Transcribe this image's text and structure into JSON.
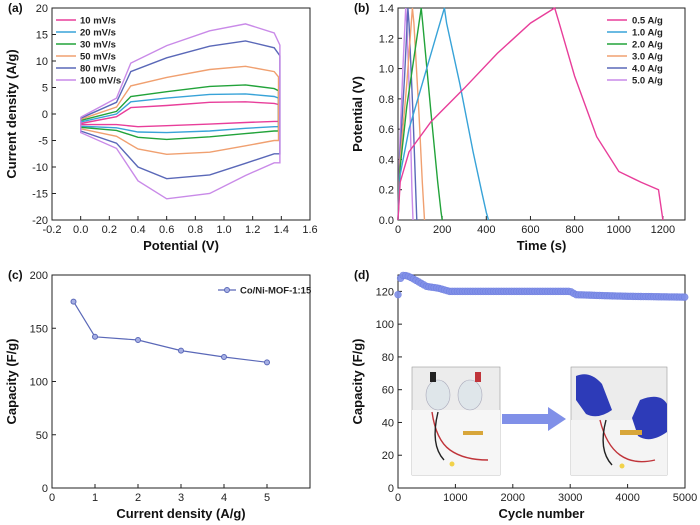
{
  "colors": {
    "s10": "#e83e9a",
    "s20": "#38a3d8",
    "s30": "#22a33a",
    "s50": "#f0a070",
    "s80": "#5a68b8",
    "s100": "#c98ae8",
    "bright": "#8090e8"
  },
  "chart_data": [
    {
      "panel_label": "(a)",
      "type": "line",
      "xlabel": "Potential (V)",
      "ylabel": "Current density (A/g)",
      "xlim": [
        -0.2,
        1.6
      ],
      "ylim": [
        -20,
        20
      ],
      "xticks": [
        "-0.2",
        "0.0",
        "0.2",
        "0.4",
        "0.6",
        "0.8",
        "1.0",
        "1.2",
        "1.4",
        "1.6"
      ],
      "yticks": [
        "-20",
        "-15",
        "-10",
        "-5",
        "0",
        "5",
        "10",
        "15",
        "20"
      ],
      "legend_position": "top-left",
      "series": [
        {
          "name": "10 mV/s",
          "color_key": "s10",
          "upper": [
            [
              0,
              -1.8
            ],
            [
              0.25,
              -0.5
            ],
            [
              0.35,
              1.2
            ],
            [
              0.6,
              1.6
            ],
            [
              0.9,
              2.2
            ],
            [
              1.15,
              2.3
            ],
            [
              1.35,
              2.0
            ],
            [
              1.38,
              1.8
            ]
          ],
          "lower": [
            [
              0,
              -2.0
            ],
            [
              0.25,
              -2.0
            ],
            [
              0.4,
              -2.4
            ],
            [
              0.6,
              -2.2
            ],
            [
              0.9,
              -1.9
            ],
            [
              1.15,
              -1.6
            ],
            [
              1.35,
              -1.4
            ],
            [
              1.38,
              -1.4
            ]
          ]
        },
        {
          "name": "20 mV/s",
          "color_key": "s20",
          "upper": [
            [
              0,
              -1.5
            ],
            [
              0.25,
              0.0
            ],
            [
              0.35,
              2.3
            ],
            [
              0.6,
              3.0
            ],
            [
              0.9,
              3.7
            ],
            [
              1.15,
              3.8
            ],
            [
              1.35,
              3.3
            ],
            [
              1.38,
              3.0
            ]
          ],
          "lower": [
            [
              0,
              -2.3
            ],
            [
              0.25,
              -2.6
            ],
            [
              0.4,
              -3.4
            ],
            [
              0.6,
              -3.5
            ],
            [
              0.9,
              -3.2
            ],
            [
              1.15,
              -2.7
            ],
            [
              1.35,
              -2.4
            ],
            [
              1.38,
              -2.4
            ]
          ]
        },
        {
          "name": "30 mV/s",
          "color_key": "s30",
          "upper": [
            [
              0,
              -1.2
            ],
            [
              0.25,
              0.5
            ],
            [
              0.35,
              3.3
            ],
            [
              0.6,
              4.2
            ],
            [
              0.9,
              5.2
            ],
            [
              1.15,
              5.5
            ],
            [
              1.35,
              4.8
            ],
            [
              1.38,
              4.4
            ]
          ],
          "lower": [
            [
              0,
              -2.5
            ],
            [
              0.25,
              -3.1
            ],
            [
              0.4,
              -4.4
            ],
            [
              0.6,
              -4.8
            ],
            [
              0.9,
              -4.3
            ],
            [
              1.15,
              -3.7
            ],
            [
              1.35,
              -3.2
            ],
            [
              1.38,
              -3.2
            ]
          ]
        },
        {
          "name": "50 mV/s",
          "color_key": "s50",
          "upper": [
            [
              0,
              -1.0
            ],
            [
              0.25,
              1.3
            ],
            [
              0.35,
              5.3
            ],
            [
              0.6,
              6.9
            ],
            [
              0.9,
              8.4
            ],
            [
              1.15,
              9.0
            ],
            [
              1.35,
              8.0
            ],
            [
              1.38,
              7.0
            ]
          ],
          "lower": [
            [
              0,
              -2.8
            ],
            [
              0.25,
              -4.2
            ],
            [
              0.4,
              -6.6
            ],
            [
              0.6,
              -7.6
            ],
            [
              0.9,
              -7.2
            ],
            [
              1.15,
              -6.0
            ],
            [
              1.35,
              -5.0
            ],
            [
              1.38,
              -5.0
            ]
          ]
        },
        {
          "name": "80 mV/s",
          "color_key": "s80",
          "upper": [
            [
              0,
              -0.8
            ],
            [
              0.25,
              2.2
            ],
            [
              0.35,
              8.0
            ],
            [
              0.6,
              10.6
            ],
            [
              0.9,
              12.8
            ],
            [
              1.15,
              13.8
            ],
            [
              1.35,
              12.5
            ],
            [
              1.39,
              11.0
            ]
          ],
          "lower": [
            [
              0,
              -3.2
            ],
            [
              0.25,
              -5.5
            ],
            [
              0.4,
              -10.0
            ],
            [
              0.6,
              -12.2
            ],
            [
              0.9,
              -11.5
            ],
            [
              1.15,
              -9.3
            ],
            [
              1.35,
              -7.5
            ],
            [
              1.39,
              -7.5
            ]
          ]
        },
        {
          "name": "100 mV/s",
          "color_key": "s100",
          "upper": [
            [
              0,
              -0.6
            ],
            [
              0.25,
              3.0
            ],
            [
              0.35,
              9.6
            ],
            [
              0.6,
              12.9
            ],
            [
              0.9,
              15.7
            ],
            [
              1.15,
              17.0
            ],
            [
              1.35,
              15.3
            ],
            [
              1.39,
              13.0
            ]
          ],
          "lower": [
            [
              0,
              -3.5
            ],
            [
              0.25,
              -6.5
            ],
            [
              0.4,
              -12.6
            ],
            [
              0.6,
              -16.0
            ],
            [
              0.9,
              -15.0
            ],
            [
              1.15,
              -11.6
            ],
            [
              1.35,
              -9.2
            ],
            [
              1.39,
              -9.2
            ]
          ]
        }
      ]
    },
    {
      "panel_label": "(b)",
      "type": "line",
      "xlabel": "Time (s)",
      "ylabel": "Potential (V)",
      "xlim": [
        0,
        1300
      ],
      "ylim": [
        0,
        1.4
      ],
      "xticks": [
        "0",
        "200",
        "400",
        "600",
        "800",
        "1000",
        "1200"
      ],
      "yticks": [
        "0.0",
        "0.2",
        "0.4",
        "0.6",
        "0.8",
        "1.0",
        "1.2",
        "1.4"
      ],
      "legend_position": "top-right",
      "series": [
        {
          "name": "0.5 A/g",
          "color_key": "s10",
          "points": [
            [
              0,
              0
            ],
            [
              10,
              0.25
            ],
            [
              50,
              0.45
            ],
            [
              150,
              0.65
            ],
            [
              300,
              0.87
            ],
            [
              450,
              1.1
            ],
            [
              600,
              1.3
            ],
            [
              710,
              1.4
            ],
            [
              730,
              1.3
            ],
            [
              800,
              0.95
            ],
            [
              900,
              0.55
            ],
            [
              1000,
              0.32
            ],
            [
              1100,
              0.25
            ],
            [
              1180,
              0.2
            ],
            [
              1195,
              0.05
            ],
            [
              1200,
              0
            ]
          ]
        },
        {
          "name": "1.0 A/g",
          "color_key": "s20",
          "points": [
            [
              0,
              0
            ],
            [
              10,
              0.3
            ],
            [
              50,
              0.6
            ],
            [
              120,
              0.95
            ],
            [
              180,
              1.25
            ],
            [
              210,
              1.4
            ],
            [
              220,
              1.3
            ],
            [
              280,
              0.9
            ],
            [
              340,
              0.45
            ],
            [
              380,
              0.18
            ],
            [
              400,
              0.05
            ],
            [
              410,
              0
            ]
          ]
        },
        {
          "name": "2.0 A/g",
          "color_key": "s30",
          "points": [
            [
              0,
              0
            ],
            [
              10,
              0.35
            ],
            [
              40,
              0.75
            ],
            [
              80,
              1.15
            ],
            [
              105,
              1.4
            ],
            [
              112,
              1.3
            ],
            [
              150,
              0.7
            ],
            [
              180,
              0.25
            ],
            [
              195,
              0.05
            ],
            [
              200,
              0
            ]
          ]
        },
        {
          "name": "3.0 A/g",
          "color_key": "s50",
          "points": [
            [
              0,
              0
            ],
            [
              10,
              0.4
            ],
            [
              40,
              0.9
            ],
            [
              65,
              1.4
            ],
            [
              72,
              1.3
            ],
            [
              95,
              0.7
            ],
            [
              110,
              0.25
            ],
            [
              120,
              0
            ]
          ]
        },
        {
          "name": "4.0 A/g",
          "color_key": "s80",
          "points": [
            [
              0,
              0
            ],
            [
              10,
              0.45
            ],
            [
              30,
              0.95
            ],
            [
              45,
              1.4
            ],
            [
              50,
              1.3
            ],
            [
              68,
              0.7
            ],
            [
              80,
              0.2
            ],
            [
              85,
              0
            ]
          ]
        },
        {
          "name": "5.0 A/g",
          "color_key": "s100",
          "points": [
            [
              0,
              0
            ],
            [
              8,
              0.5
            ],
            [
              22,
              1.0
            ],
            [
              35,
              1.4
            ],
            [
              40,
              1.3
            ],
            [
              55,
              0.7
            ],
            [
              63,
              0.2
            ],
            [
              68,
              0
            ]
          ]
        }
      ]
    },
    {
      "panel_label": "(c)",
      "type": "line",
      "xlabel": "Current density (A/g)",
      "ylabel": "Capacity (F/g)",
      "xlim": [
        0,
        6
      ],
      "ylim": [
        0,
        200
      ],
      "xticks": [
        "0",
        "1",
        "2",
        "3",
        "4",
        "5"
      ],
      "yticks": [
        "0",
        "50",
        "100",
        "150",
        "200"
      ],
      "legend_position": "top-right",
      "series": [
        {
          "name": "Co/Ni-MOF-1:15",
          "color_key": "s80",
          "x": [
            0.5,
            1,
            2,
            3,
            4,
            5
          ],
          "y": [
            175,
            142,
            139,
            129,
            123,
            118
          ]
        }
      ]
    },
    {
      "panel_label": "(d)",
      "type": "scatter",
      "xlabel": "Cycle number",
      "ylabel": "Capacity (F/g)",
      "xlim": [
        0,
        5000
      ],
      "ylim": [
        0,
        130
      ],
      "xticks": [
        "0",
        "1000",
        "2000",
        "3000",
        "4000",
        "5000"
      ],
      "yticks": [
        "0",
        "20",
        "40",
        "60",
        "80",
        "100",
        "120"
      ],
      "series": [
        {
          "color_key": "bright",
          "segments": [
            [
              0,
              118
            ],
            [
              30,
              127
            ],
            [
              60,
              129
            ],
            [
              100,
              130
            ],
            [
              200,
              129
            ],
            [
              300,
              127
            ],
            [
              400,
              125
            ],
            [
              500,
              123
            ],
            [
              700,
              122
            ],
            [
              900,
              120
            ],
            [
              1500,
              120
            ],
            [
              2200,
              120
            ],
            [
              3000,
              120
            ],
            [
              3100,
              118
            ],
            [
              3500,
              117.5
            ],
            [
              4000,
              117
            ],
            [
              5000,
              116.5
            ]
          ]
        }
      ]
    }
  ]
}
